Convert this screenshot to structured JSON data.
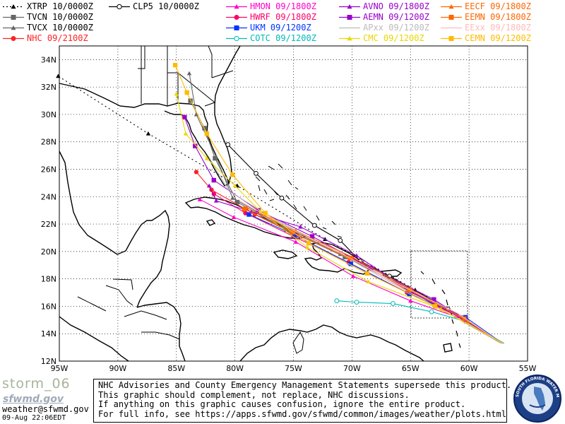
{
  "legend": [
    {
      "label": "XTRP 10/0000Z",
      "color": "#000000",
      "marker": "triangle",
      "line": "dotted"
    },
    {
      "label": "TVCN 10/0000Z",
      "color": "#666666",
      "marker": "square",
      "line": "solid"
    },
    {
      "label": "TVCX 10/0000Z",
      "color": "#666666",
      "marker": "triangle",
      "line": "solid"
    },
    {
      "label": "NHC 09/2100Z",
      "color": "#ff2222",
      "marker": "circle",
      "line": "solid"
    },
    {
      "label": "CLP5 10/0000Z",
      "color": "#000000",
      "marker": "open-circle",
      "line": "solid"
    },
    {
      "label": "HMON 09/1800Z",
      "color": "#ff00cc",
      "marker": "triangle",
      "line": "solid"
    },
    {
      "label": "HWRF 09/1800Z",
      "color": "#ff0066",
      "marker": "circle",
      "line": "solid"
    },
    {
      "label": "UKM 09/1200Z",
      "color": "#0033ff",
      "marker": "square",
      "line": "solid"
    },
    {
      "label": "COTC 09/1200Z",
      "color": "#00bbbb",
      "marker": "open-circle",
      "line": "solid"
    },
    {
      "label": "AVNO 09/1800Z",
      "color": "#9900cc",
      "marker": "triangle",
      "line": "solid"
    },
    {
      "label": "AEMN 09/1200Z",
      "color": "#9900cc",
      "marker": "square",
      "line": "solid"
    },
    {
      "label": "APxx 09/1200Z",
      "color": "#bbbbbb",
      "marker": "none",
      "line": "solid"
    },
    {
      "label": "CMC 09/1200Z",
      "color": "#e8d800",
      "marker": "triangle",
      "line": "solid"
    },
    {
      "label": "EECF 09/1800Z",
      "color": "#ff6600",
      "marker": "triangle",
      "line": "solid"
    },
    {
      "label": "EEMN 09/1800Z",
      "color": "#ff6600",
      "marker": "square",
      "line": "solid"
    },
    {
      "label": "EExx 09/1800Z",
      "color": "#ffbbbb",
      "marker": "none",
      "line": "solid"
    },
    {
      "label": "CEMN 09/1200Z",
      "color": "#ffbb00",
      "marker": "square",
      "line": "solid"
    }
  ],
  "axes": {
    "lon_labels": [
      "95W",
      "90W",
      "85W",
      "80W",
      "75W",
      "70W",
      "65W",
      "60W",
      "55W"
    ],
    "lat_labels": [
      "12N",
      "14N",
      "16N",
      "18N",
      "20N",
      "22N",
      "24N",
      "26N",
      "28N",
      "30N",
      "32N",
      "34N"
    ],
    "grid": "dotted"
  },
  "footer": {
    "storm": "storm_06",
    "logo": "sfwmd.gov",
    "email": "weather@sfwmd.gov",
    "timestamp": "09-Aug 22:06EDT",
    "disclaimer": [
      "NHC Advisories and County Emergency Management Statements supersede this product.",
      "This graphic should complement, not replace, NHC discussions.",
      "If anything on this graphic causes confusion, ignore the entire product.",
      "For full info, see  https://apps.sfwmd.gov/sfwmd/common/images/weather/plots.html"
    ],
    "seal_text": "SOUTH FLORIDA WATER MANAGEMENT DISTRICT"
  },
  "tracks": [
    {
      "name": "XTRP",
      "color": "#000000",
      "dash": "2,4",
      "marker": "triangle",
      "pts": [
        [
          -57.1,
          13.3
        ],
        [
          -64.6,
          17.2
        ],
        [
          -72.3,
          20.9
        ],
        [
          -79.8,
          24.8
        ],
        [
          -87.4,
          28.6
        ],
        [
          -95.1,
          32.8
        ]
      ]
    },
    {
      "name": "NHC",
      "color": "#ff2222",
      "marker": "circle",
      "pts": [
        [
          -57.2,
          13.3
        ],
        [
          -60.2,
          15.0
        ],
        [
          -64.9,
          17.0
        ],
        [
          -70.0,
          19.5
        ],
        [
          -74.7,
          21.2
        ],
        [
          -78.3,
          22.7
        ],
        [
          -82.0,
          24.5
        ],
        [
          -83.3,
          25.8
        ]
      ]
    },
    {
      "name": "TVCN",
      "color": "#666666",
      "marker": "square",
      "pts": [
        [
          -57.2,
          13.3
        ],
        [
          -60.4,
          15.1
        ],
        [
          -65.2,
          17.3
        ],
        [
          -70.6,
          19.6
        ],
        [
          -75.6,
          21.6
        ],
        [
          -79.8,
          23.6
        ],
        [
          -81.7,
          26.8
        ],
        [
          -82.6,
          29.0
        ],
        [
          -83.8,
          31.0
        ]
      ]
    },
    {
      "name": "TVCX",
      "color": "#666666",
      "marker": "triangle",
      "pts": [
        [
          -57.2,
          13.3
        ],
        [
          -60.6,
          15.2
        ],
        [
          -65.4,
          17.4
        ],
        [
          -71.0,
          19.8
        ],
        [
          -76.0,
          21.9
        ],
        [
          -80.2,
          23.9
        ],
        [
          -81.6,
          26.9
        ],
        [
          -83.3,
          30.0
        ],
        [
          -83.9,
          33.0
        ]
      ]
    },
    {
      "name": "CLP5",
      "color": "#000000",
      "marker": "open-circle",
      "pts": [
        [
          -57.1,
          13.3
        ],
        [
          -61.8,
          15.8
        ],
        [
          -66.8,
          18.2
        ],
        [
          -69.3,
          19.3
        ],
        [
          -71.0,
          20.8
        ],
        [
          -73.2,
          21.9
        ],
        [
          -76.0,
          23.9
        ],
        [
          -78.2,
          25.7
        ],
        [
          -80.6,
          27.8
        ]
      ]
    },
    {
      "name": "HMON",
      "color": "#ff00cc",
      "marker": "triangle",
      "pts": [
        [
          -57.2,
          13.3
        ],
        [
          -60.3,
          15.0
        ],
        [
          -65.0,
          16.4
        ],
        [
          -69.9,
          18.2
        ],
        [
          -74.8,
          20.7
        ],
        [
          -80.1,
          22.5
        ],
        [
          -83.0,
          23.8
        ]
      ]
    },
    {
      "name": "HWRF",
      "color": "#ff0066",
      "marker": "circle",
      "pts": [
        [
          -57.2,
          13.3
        ],
        [
          -60.5,
          15.1
        ],
        [
          -65.3,
          17.0
        ],
        [
          -70.3,
          19.2
        ],
        [
          -75.0,
          21.1
        ],
        [
          -79.1,
          22.8
        ],
        [
          -81.8,
          24.2
        ]
      ]
    },
    {
      "name": "UKM",
      "color": "#0033ff",
      "marker": "square",
      "pts": [
        [
          -57.3,
          13.4
        ],
        [
          -60.3,
          15.2
        ],
        [
          -65.1,
          16.9
        ],
        [
          -70.1,
          19.1
        ],
        [
          -74.9,
          21.2
        ],
        [
          -78.8,
          22.7
        ]
      ]
    },
    {
      "name": "COTC",
      "color": "#00bbbb",
      "marker": "open-circle",
      "pts": [
        [
          -57.0,
          13.3
        ],
        [
          -60.3,
          14.9
        ],
        [
          -63.2,
          15.6
        ],
        [
          -66.5,
          16.2
        ],
        [
          -69.6,
          16.3
        ],
        [
          -71.3,
          16.4
        ]
      ]
    },
    {
      "name": "AVNO",
      "color": "#9900cc",
      "marker": "triangle",
      "pts": [
        [
          -57.2,
          13.3
        ],
        [
          -60.4,
          15.0
        ],
        [
          -65.0,
          17.1
        ],
        [
          -69.6,
          19.7
        ],
        [
          -74.4,
          21.8
        ],
        [
          -78.6,
          22.9
        ],
        [
          -81.6,
          23.7
        ],
        [
          -82.2,
          24.8
        ]
      ]
    },
    {
      "name": "AEMN",
      "color": "#9900cc",
      "marker": "square",
      "pts": [
        [
          -57.2,
          13.3
        ],
        [
          -63.0,
          16.5
        ],
        [
          -68.4,
          18.8
        ],
        [
          -73.4,
          21.1
        ],
        [
          -78.0,
          23.0
        ],
        [
          -81.8,
          25.2
        ],
        [
          -83.4,
          27.7
        ],
        [
          -84.3,
          29.8
        ]
      ]
    },
    {
      "name": "APxx",
      "color": "#bbbbbb",
      "marker": "none",
      "pts": [
        [
          -57.3,
          13.3
        ],
        [
          -62.0,
          15.6
        ],
        [
          -67.0,
          17.9
        ],
        [
          -72.0,
          20.3
        ],
        [
          -76.5,
          22.3
        ],
        [
          -80.5,
          24.4
        ],
        [
          -82.3,
          27.0
        ]
      ]
    },
    {
      "name": "CMC",
      "color": "#e8d800",
      "marker": "triangle",
      "pts": [
        [
          -57.1,
          13.3
        ],
        [
          -62.4,
          15.8
        ],
        [
          -68.6,
          17.8
        ],
        [
          -73.8,
          20.3
        ],
        [
          -77.8,
          22.9
        ],
        [
          -80.0,
          24.8
        ],
        [
          -82.4,
          26.8
        ],
        [
          -84.2,
          28.6
        ],
        [
          -85.0,
          31.5
        ]
      ]
    },
    {
      "name": "EECF",
      "color": "#ff6600",
      "marker": "triangle",
      "pts": [
        [
          -57.2,
          13.3
        ],
        [
          -60.1,
          14.9
        ],
        [
          -64.9,
          17.2
        ],
        [
          -70.0,
          19.6
        ],
        [
          -74.8,
          21.5
        ],
        [
          -79.0,
          23.2
        ]
      ]
    },
    {
      "name": "EEMN",
      "color": "#ff6600",
      "marker": "square",
      "pts": [
        [
          -57.2,
          13.3
        ],
        [
          -60.4,
          15.1
        ],
        [
          -65.1,
          17.2
        ],
        [
          -70.2,
          19.5
        ],
        [
          -75.1,
          21.4
        ],
        [
          -79.2,
          23.1
        ]
      ]
    },
    {
      "name": "EExx",
      "color": "#ffbbbb",
      "marker": "none",
      "pts": [
        [
          -57.2,
          13.3
        ],
        [
          -61.0,
          15.5
        ],
        [
          -66.0,
          17.6
        ],
        [
          -71.0,
          19.9
        ],
        [
          -75.6,
          21.8
        ],
        [
          -79.6,
          23.7
        ]
      ]
    },
    {
      "name": "CEMN",
      "color": "#ffbb00",
      "marker": "square",
      "pts": [
        [
          -57.1,
          13.3
        ],
        [
          -62.9,
          16.0
        ],
        [
          -68.7,
          18.4
        ],
        [
          -73.7,
          20.6
        ],
        [
          -77.4,
          22.8
        ],
        [
          -80.2,
          25.6
        ],
        [
          -82.4,
          28.6
        ],
        [
          -84.1,
          31.6
        ],
        [
          -85.1,
          33.6
        ]
      ]
    }
  ]
}
